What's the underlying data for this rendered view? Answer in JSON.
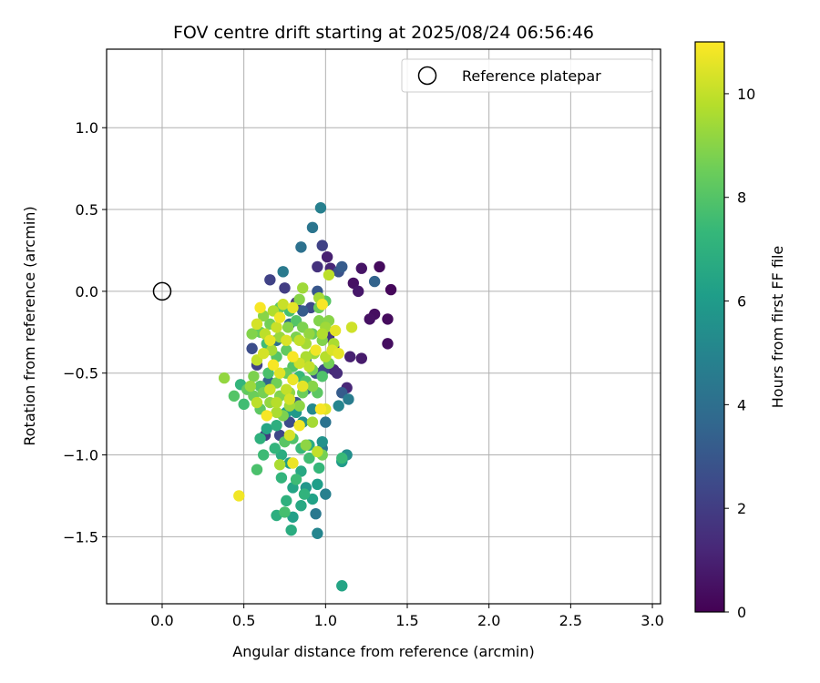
{
  "chart_data": {
    "type": "scatter",
    "title": "FOV centre drift starting at 2025/08/24 06:56:46",
    "xlabel": "Angular distance from reference (arcmin)",
    "ylabel": "Rotation from reference (arcmin)",
    "xlim": [
      -0.34,
      3.05
    ],
    "ylim": [
      -1.91,
      1.48
    ],
    "xticks": [
      0.0,
      0.5,
      1.0,
      1.5,
      2.0,
      2.5,
      3.0
    ],
    "xtick_labels": [
      "0.0",
      "0.5",
      "1.0",
      "1.5",
      "2.0",
      "2.5",
      "3.0"
    ],
    "yticks": [
      -1.5,
      -1.0,
      -0.5,
      0.0,
      0.5,
      1.0
    ],
    "ytick_labels": [
      "−1.5",
      "−1.0",
      "−0.5",
      "0.0",
      "0.5",
      "1.0"
    ],
    "grid": true,
    "legend": {
      "placement": "top-right",
      "entries": [
        "Reference platepar"
      ]
    },
    "reference_point": {
      "x": 0.0,
      "y": 0.0
    },
    "colorbar": {
      "label": "Hours from first FF file",
      "colormap": "viridis",
      "range": [
        0,
        11
      ],
      "ticks": [
        0,
        2,
        4,
        6,
        8,
        10
      ],
      "tick_labels": [
        "0",
        "2",
        "4",
        "6",
        "8",
        "10"
      ]
    },
    "colormap_stops": [
      "#440154",
      "#482878",
      "#3e4989",
      "#31688e",
      "#26828e",
      "#1f9e89",
      "#35b779",
      "#6ece58",
      "#b5de2b",
      "#fde725"
    ],
    "points": [
      [
        1.4,
        0.01,
        0.2
      ],
      [
        1.33,
        0.15,
        0.3
      ],
      [
        1.38,
        -0.17,
        0.3
      ],
      [
        1.38,
        -0.32,
        0.4
      ],
      [
        1.27,
        -0.17,
        0.5
      ],
      [
        1.3,
        -0.14,
        0.4
      ],
      [
        1.22,
        0.14,
        0.6
      ],
      [
        1.17,
        0.05,
        0.5
      ],
      [
        1.2,
        0.0,
        0.7
      ],
      [
        1.22,
        -0.41,
        0.8
      ],
      [
        1.15,
        -0.4,
        1.0
      ],
      [
        1.13,
        -0.59,
        1.2
      ],
      [
        1.07,
        -0.5,
        1.4
      ],
      [
        1.05,
        -0.48,
        1.3
      ],
      [
        1.01,
        0.21,
        1.0
      ],
      [
        1.03,
        0.14,
        1.2
      ],
      [
        0.95,
        0.15,
        1.6
      ],
      [
        0.98,
        0.28,
        2.2
      ],
      [
        1.08,
        0.12,
        2.8
      ],
      [
        1.1,
        0.15,
        3.2
      ],
      [
        1.3,
        0.06,
        3.5
      ],
      [
        0.85,
        0.27,
        4.1
      ],
      [
        0.92,
        0.39,
        4.3
      ],
      [
        0.97,
        0.51,
        4.8
      ],
      [
        0.95,
        0.0,
        3.0
      ],
      [
        0.91,
        -0.1,
        2.5
      ],
      [
        1.02,
        -0.28,
        1.8
      ],
      [
        1.05,
        -0.34,
        2.0
      ],
      [
        0.99,
        -0.48,
        2.3
      ],
      [
        0.94,
        -0.5,
        2.8
      ],
      [
        1.1,
        -0.62,
        3.2
      ],
      [
        1.14,
        -0.66,
        4.6
      ],
      [
        1.08,
        -0.7,
        5.0
      ],
      [
        1.0,
        -0.8,
        4.2
      ],
      [
        0.88,
        -0.6,
        3.6
      ],
      [
        0.82,
        -0.68,
        3.0
      ],
      [
        0.78,
        -0.8,
        2.6
      ],
      [
        0.72,
        -0.88,
        2.4
      ],
      [
        0.63,
        -0.88,
        1.8
      ],
      [
        0.58,
        -0.45,
        2.2
      ],
      [
        0.55,
        -0.35,
        2.6
      ],
      [
        0.66,
        0.07,
        2.2
      ],
      [
        0.75,
        0.02,
        2.0
      ],
      [
        0.82,
        -0.07,
        1.8
      ],
      [
        0.86,
        -0.12,
        3.2
      ],
      [
        0.74,
        0.12,
        4.5
      ],
      [
        0.78,
        -0.2,
        3.8
      ],
      [
        0.7,
        -0.3,
        4.0
      ],
      [
        0.65,
        -0.55,
        3.5
      ],
      [
        0.88,
        -0.42,
        4.0
      ],
      [
        0.92,
        -0.72,
        5.2
      ],
      [
        0.98,
        -0.96,
        4.5
      ],
      [
        1.0,
        -1.24,
        4.8
      ],
      [
        0.94,
        -1.36,
        4.4
      ],
      [
        0.95,
        -1.48,
        5.0
      ],
      [
        1.1,
        -1.8,
        6.4
      ],
      [
        1.13,
        -1.0,
        5.4
      ],
      [
        1.1,
        -1.04,
        5.9
      ],
      [
        0.98,
        -0.92,
        5.6
      ],
      [
        0.95,
        -1.18,
        6.1
      ],
      [
        0.92,
        -1.27,
        6.3
      ],
      [
        0.85,
        -1.31,
        6.6
      ],
      [
        0.8,
        -1.38,
        6.2
      ],
      [
        0.79,
        -1.46,
        6.8
      ],
      [
        0.7,
        -1.37,
        6.9
      ],
      [
        0.76,
        -1.28,
        7.0
      ],
      [
        0.73,
        -1.14,
        7.2
      ],
      [
        0.8,
        -1.2,
        6.4
      ],
      [
        0.85,
        -1.1,
        6.6
      ],
      [
        0.88,
        -1.2,
        5.8
      ],
      [
        0.78,
        -1.05,
        6.0
      ],
      [
        0.73,
        -1.0,
        6.8
      ],
      [
        0.69,
        -0.96,
        7.2
      ],
      [
        0.62,
        -1.0,
        7.5
      ],
      [
        0.58,
        -1.09,
        7.8
      ],
      [
        0.6,
        -0.9,
        7.0
      ],
      [
        0.64,
        -0.84,
        6.5
      ],
      [
        0.7,
        -0.82,
        6.9
      ],
      [
        0.76,
        -0.74,
        6.1
      ],
      [
        0.82,
        -0.74,
        5.9
      ],
      [
        0.86,
        -0.8,
        5.5
      ],
      [
        0.9,
        -0.94,
        6.8
      ],
      [
        0.96,
        -1.08,
        7.3
      ],
      [
        0.9,
        -1.02,
        7.6
      ],
      [
        0.85,
        -0.96,
        7.4
      ],
      [
        0.8,
        -0.9,
        7.9
      ],
      [
        0.75,
        -0.92,
        8.1
      ],
      [
        0.82,
        -1.15,
        7.5
      ],
      [
        0.87,
        -1.24,
        7.1
      ],
      [
        0.75,
        -1.35,
        7.7
      ],
      [
        0.6,
        -0.72,
        8.2
      ],
      [
        0.56,
        -0.64,
        8.5
      ],
      [
        0.5,
        -0.69,
        7.6
      ],
      [
        0.48,
        -0.57,
        7.2
      ],
      [
        0.44,
        -0.64,
        8.0
      ],
      [
        0.52,
        -0.6,
        8.3
      ],
      [
        0.56,
        -0.52,
        8.8
      ],
      [
        0.6,
        -0.58,
        8.0
      ],
      [
        0.65,
        -0.5,
        7.8
      ],
      [
        0.7,
        -0.56,
        8.6
      ],
      [
        0.72,
        -0.64,
        8.9
      ],
      [
        0.78,
        -0.62,
        9.1
      ],
      [
        0.76,
        -0.5,
        8.4
      ],
      [
        0.8,
        -0.46,
        8.0
      ],
      [
        0.84,
        -0.52,
        7.4
      ],
      [
        0.88,
        -0.55,
        7.9
      ],
      [
        0.92,
        -0.48,
        8.7
      ],
      [
        0.95,
        -0.62,
        8.2
      ],
      [
        0.93,
        -0.38,
        9.3
      ],
      [
        0.88,
        -0.32,
        9.5
      ],
      [
        0.82,
        -0.28,
        8.8
      ],
      [
        0.76,
        -0.36,
        8.3
      ],
      [
        0.7,
        -0.4,
        8.0
      ],
      [
        0.64,
        -0.32,
        7.6
      ],
      [
        0.6,
        -0.25,
        8.4
      ],
      [
        0.55,
        -0.26,
        8.9
      ],
      [
        0.62,
        -0.15,
        9.0
      ],
      [
        0.66,
        -0.2,
        8.6
      ],
      [
        0.72,
        -0.1,
        8.2
      ],
      [
        0.78,
        -0.12,
        7.7
      ],
      [
        0.82,
        -0.18,
        8.0
      ],
      [
        0.86,
        -0.22,
        8.8
      ],
      [
        0.9,
        -0.26,
        9.2
      ],
      [
        0.96,
        -0.1,
        8.5
      ],
      [
        1.0,
        -0.06,
        8.1
      ],
      [
        1.02,
        -0.18,
        9.0
      ],
      [
        1.0,
        -0.22,
        9.4
      ],
      [
        0.98,
        -0.3,
        8.9
      ],
      [
        1.05,
        -0.32,
        9.6
      ],
      [
        1.0,
        -0.4,
        9.8
      ],
      [
        1.02,
        -0.44,
        8.6
      ],
      [
        0.98,
        -0.52,
        7.9
      ],
      [
        0.92,
        -0.58,
        9.0
      ],
      [
        0.86,
        -0.62,
        8.5
      ],
      [
        0.84,
        -0.7,
        9.1
      ],
      [
        0.78,
        -0.7,
        9.4
      ],
      [
        0.74,
        -0.76,
        8.8
      ],
      [
        0.7,
        -0.74,
        9.6
      ],
      [
        0.66,
        -0.68,
        9.2
      ],
      [
        0.62,
        -0.62,
        8.7
      ],
      [
        0.58,
        -0.68,
        9.9
      ],
      [
        0.54,
        -0.58,
        9.3
      ],
      [
        0.58,
        -0.42,
        10.0
      ],
      [
        0.62,
        -0.38,
        10.3
      ],
      [
        0.66,
        -0.3,
        10.6
      ],
      [
        0.7,
        -0.22,
        10.1
      ],
      [
        0.72,
        -0.16,
        10.8
      ],
      [
        0.76,
        -0.3,
        10.4
      ],
      [
        0.8,
        -0.4,
        10.9
      ],
      [
        0.84,
        -0.44,
        10.2
      ],
      [
        0.8,
        -0.54,
        10.7
      ],
      [
        0.76,
        -0.6,
        10.0
      ],
      [
        0.72,
        -0.5,
        10.5
      ],
      [
        0.68,
        -0.45,
        10.9
      ],
      [
        0.66,
        -0.6,
        10.2
      ],
      [
        0.7,
        -0.68,
        9.8
      ],
      [
        0.78,
        -0.66,
        10.3
      ],
      [
        0.86,
        -0.58,
        10.6
      ],
      [
        0.9,
        -0.46,
        10.0
      ],
      [
        0.94,
        -0.36,
        10.8
      ],
      [
        0.98,
        -0.26,
        9.7
      ],
      [
        1.04,
        -0.36,
        10.4
      ],
      [
        0.98,
        -0.08,
        10.9
      ],
      [
        1.02,
        0.1,
        9.9
      ],
      [
        0.96,
        -0.04,
        9.5
      ],
      [
        0.86,
        0.02,
        9.4
      ],
      [
        0.84,
        -0.05,
        9.0
      ],
      [
        0.8,
        -0.1,
        10.6
      ],
      [
        0.74,
        -0.08,
        10.1
      ],
      [
        0.68,
        -0.12,
        9.7
      ],
      [
        0.6,
        -0.1,
        10.9
      ],
      [
        0.58,
        -0.2,
        10.3
      ],
      [
        0.63,
        -0.26,
        9.9
      ],
      [
        0.67,
        -0.36,
        9.5
      ],
      [
        0.72,
        -0.28,
        9.3
      ],
      [
        0.77,
        -0.22,
        9.0
      ],
      [
        0.84,
        -0.3,
        10.0
      ],
      [
        0.88,
        -0.4,
        9.6
      ],
      [
        0.92,
        -0.26,
        8.4
      ],
      [
        0.96,
        -0.18,
        8.9
      ],
      [
        1.06,
        -0.24,
        10.6
      ],
      [
        1.16,
        -0.22,
        10.2
      ],
      [
        0.92,
        -0.8,
        9.5
      ],
      [
        0.95,
        -0.98,
        10.0
      ],
      [
        0.97,
        -0.72,
        10.9
      ],
      [
        1.0,
        -0.72,
        10.5
      ],
      [
        0.84,
        -0.82,
        10.8
      ],
      [
        0.78,
        -0.88,
        10.3
      ],
      [
        0.72,
        -1.06,
        9.6
      ],
      [
        0.8,
        -1.05,
        10.7
      ],
      [
        0.88,
        -0.94,
        9.1
      ],
      [
        0.98,
        -1.0,
        8.7
      ],
      [
        0.64,
        -0.76,
        10.9
      ],
      [
        0.38,
        -0.53,
        9.2
      ],
      [
        0.47,
        -1.25,
        10.8
      ],
      [
        1.08,
        -0.38,
        10.6
      ],
      [
        1.1,
        -1.02,
        7.4
      ],
      [
        1.1,
        -1.04,
        6.0
      ]
    ]
  }
}
